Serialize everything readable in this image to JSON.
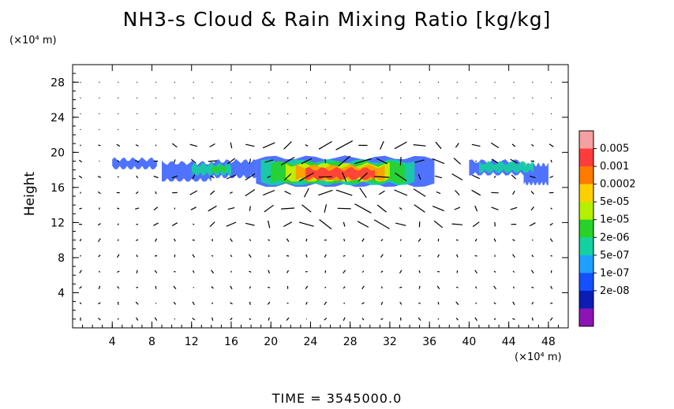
{
  "title": "NH3-s Cloud & Rain Mixing Ratio [kg/kg]",
  "y_unit_label": "(×10⁴ m)",
  "x_unit_label": "(×10⁴ m)",
  "time_label": "TIME = 3545000.0",
  "chart_data": {
    "type": "heatmap",
    "title": "NH3-s Cloud & Rain Mixing Ratio [kg/kg]",
    "xlabel": "",
    "ylabel": "Height",
    "x_ticks": [
      "4",
      "8",
      "12",
      "16",
      "20",
      "24",
      "28",
      "32",
      "36",
      "40",
      "44",
      "48"
    ],
    "y_ticks": [
      "4",
      "8",
      "12",
      "16",
      "20",
      "24",
      "28"
    ],
    "xlim": [
      0,
      50
    ],
    "ylim": [
      0,
      30
    ],
    "colorbar": {
      "levels": [
        "0.005",
        "0.001",
        "0.0002",
        "5e-05",
        "1e-05",
        "2e-06",
        "5e-07",
        "1e-07",
        "2e-08"
      ],
      "colors": [
        "#f4a0a0",
        "#ff3c3c",
        "#ff7a00",
        "#ffd000",
        "#b4f000",
        "#28d228",
        "#14d2a0",
        "#1ea0ff",
        "#1450ff",
        "#0a1eb4",
        "#8c14b4"
      ]
    },
    "layers": [
      {
        "level": "2e-08",
        "color": "#3c64ff",
        "segments": [
          [
            4.0,
            8.5,
            18.2,
            19.2
          ],
          [
            9.0,
            14.0,
            16.8,
            18.8
          ],
          [
            14.0,
            18.5,
            17.2,
            19.0
          ],
          [
            18.5,
            36.5,
            16.2,
            19.4
          ],
          [
            40.0,
            45.5,
            17.5,
            19.0
          ],
          [
            45.5,
            48.0,
            16.4,
            18.6
          ]
        ]
      },
      {
        "level": "1e-06",
        "color": "#14d2a0",
        "segments": [
          [
            12.0,
            16.0,
            17.5,
            18.6
          ],
          [
            19.0,
            34.5,
            16.4,
            19.0
          ],
          [
            41.0,
            46.5,
            17.8,
            18.8
          ]
        ]
      },
      {
        "level": "1e-05",
        "color": "#28d228",
        "segments": [
          [
            14.0,
            15.5,
            17.8,
            18.4
          ],
          [
            20.0,
            33.5,
            16.6,
            18.8
          ]
        ]
      },
      {
        "level": "5e-05",
        "color": "#d2f000",
        "segments": [
          [
            21.5,
            32.0,
            16.8,
            18.6
          ]
        ]
      },
      {
        "level": "0.0002",
        "color": "#ff9a00",
        "segments": [
          [
            22.5,
            31.5,
            16.9,
            18.4
          ]
        ]
      },
      {
        "level": "0.001",
        "color": "#ff3c3c",
        "segments": [
          [
            23.5,
            30.5,
            17.0,
            18.1
          ]
        ]
      }
    ]
  }
}
